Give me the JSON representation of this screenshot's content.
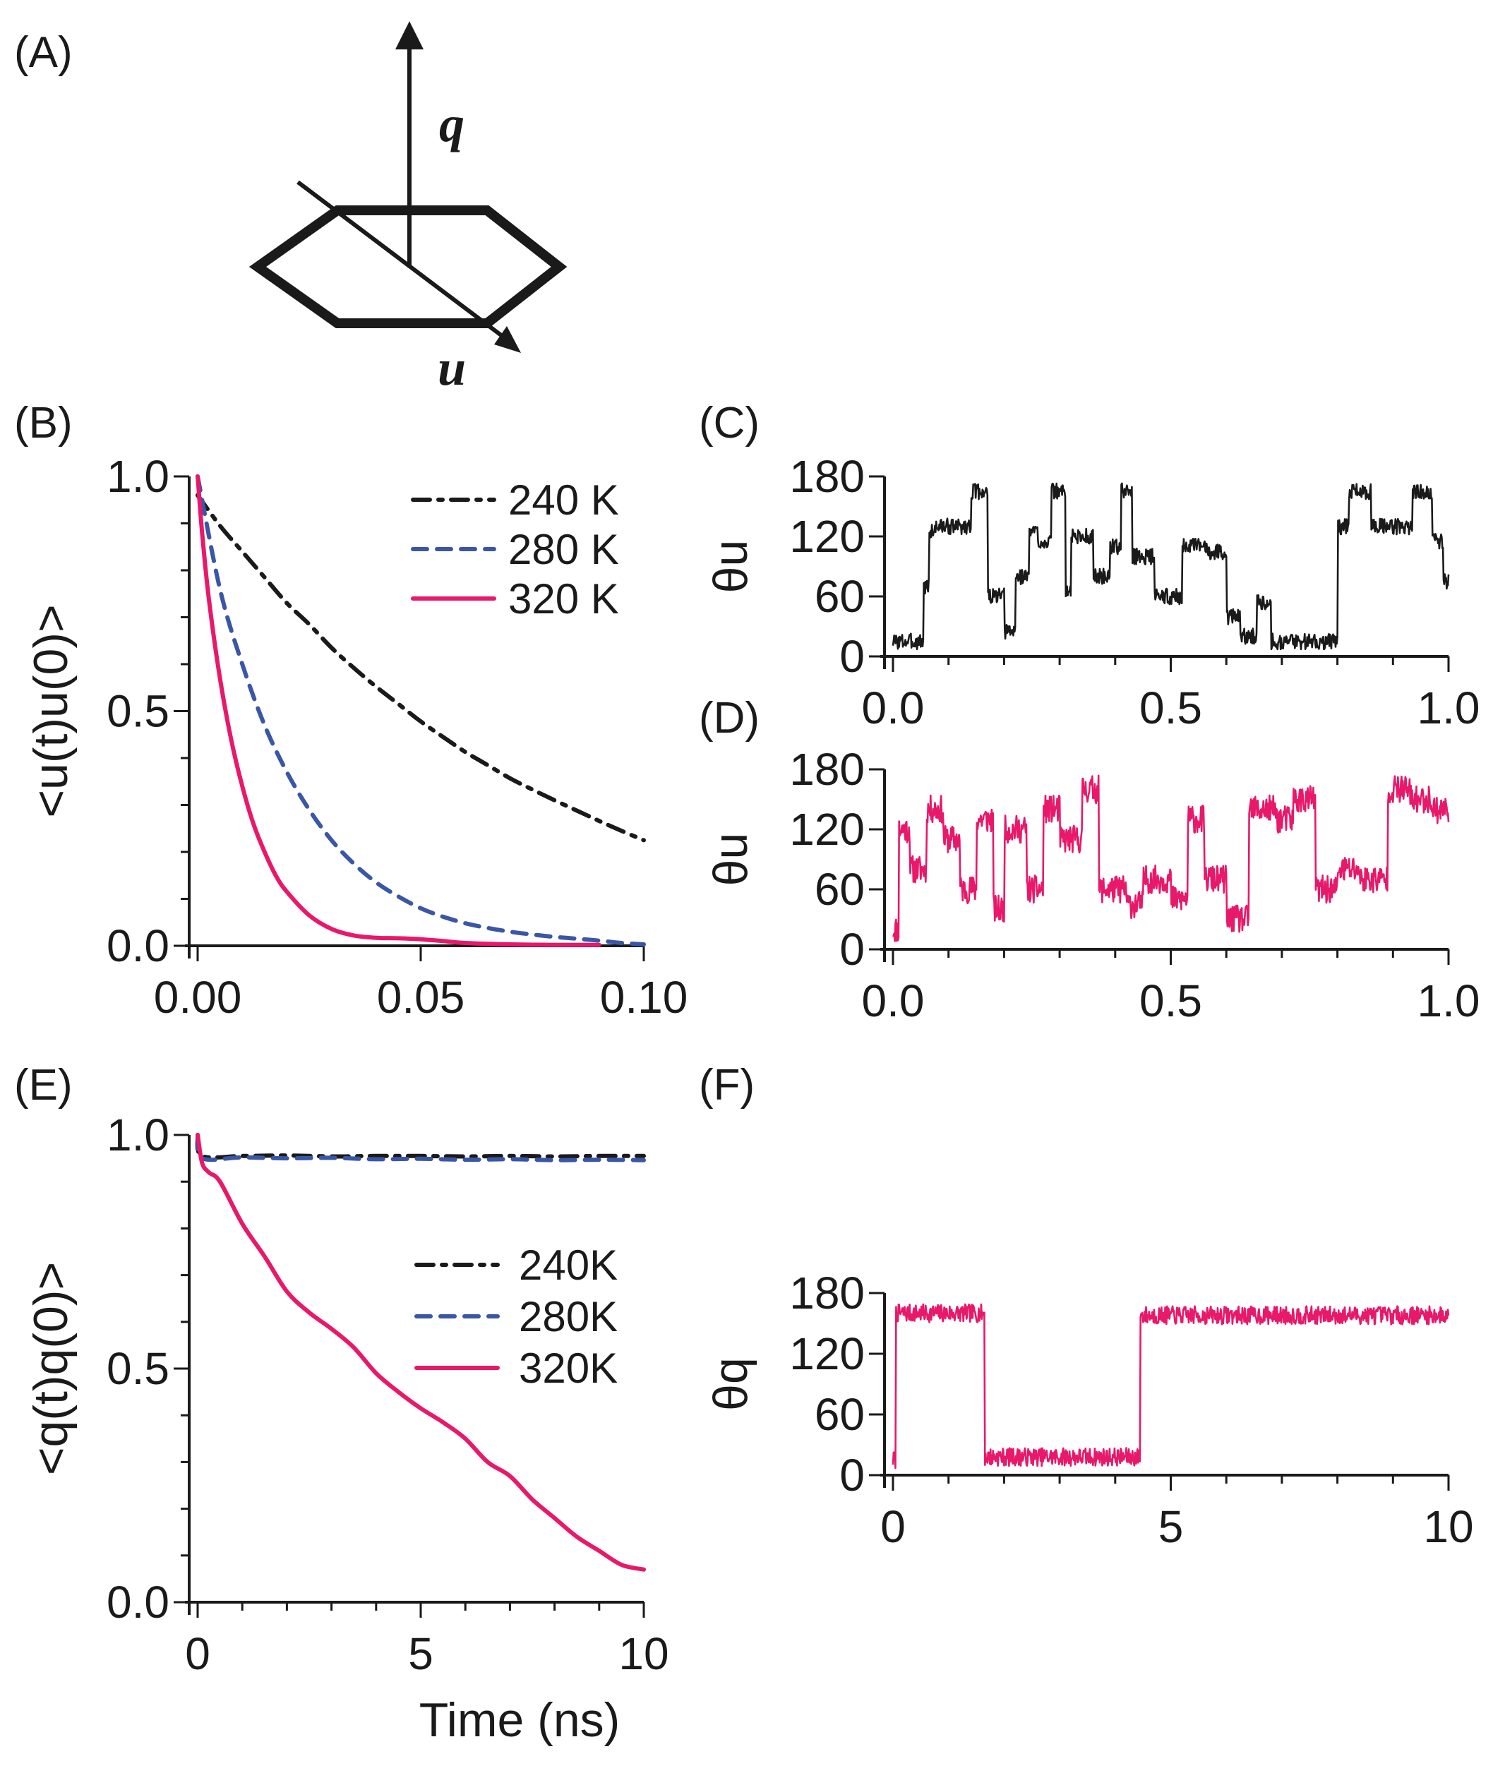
{
  "colors": {
    "black": "#1a1a1a",
    "blue": "#3a56a6",
    "pink": "#e8186a"
  },
  "panel_a": {
    "label": "(A)",
    "q_label": "q",
    "u_label": "u"
  },
  "chart_data": [
    {
      "id": "B",
      "type": "line",
      "panel_label": "(B)",
      "ylabel": "<u(t)u(0)>",
      "xlabel": "",
      "xlim": [
        0,
        0.1
      ],
      "ylim": [
        0,
        1.0
      ],
      "xticks": [
        0,
        0.05,
        0.1
      ],
      "xtick_labels": [
        "0.00",
        "0.05",
        "0.10"
      ],
      "yticks": [
        0,
        0.5,
        1.0
      ],
      "ytick_labels": [
        "0.0",
        "0.5",
        "1.0"
      ],
      "legend": [
        "240 K",
        "280 K",
        "320 K"
      ],
      "series": [
        {
          "name": "240 K",
          "style": "dashdot",
          "color": "#1a1a1a",
          "x": [
            0,
            0.005,
            0.01,
            0.015,
            0.02,
            0.025,
            0.03,
            0.035,
            0.04,
            0.045,
            0.05,
            0.055,
            0.06,
            0.065,
            0.07,
            0.075,
            0.08,
            0.085,
            0.09,
            0.095,
            0.1
          ],
          "values": [
            0.96,
            0.895,
            0.84,
            0.785,
            0.73,
            0.685,
            0.635,
            0.592,
            0.552,
            0.515,
            0.478,
            0.445,
            0.413,
            0.385,
            0.357,
            0.333,
            0.31,
            0.288,
            0.266,
            0.245,
            0.225
          ]
        },
        {
          "name": "280 K",
          "style": "dashed",
          "color": "#3a56a6",
          "x": [
            0,
            0.005,
            0.01,
            0.015,
            0.02,
            0.025,
            0.03,
            0.035,
            0.04,
            0.045,
            0.05,
            0.055,
            0.06,
            0.065,
            0.07,
            0.075,
            0.08,
            0.085,
            0.09,
            0.095,
            0.1
          ],
          "values": [
            1.0,
            0.76,
            0.6,
            0.47,
            0.37,
            0.29,
            0.225,
            0.175,
            0.135,
            0.105,
            0.08,
            0.062,
            0.048,
            0.038,
            0.03,
            0.024,
            0.019,
            0.015,
            0.011,
            0.006,
            0.003
          ]
        },
        {
          "name": "320 K",
          "style": "solid",
          "color": "#e8186a",
          "x": [
            0,
            0.001,
            0.0025,
            0.005,
            0.0075,
            0.01,
            0.0125,
            0.015,
            0.0175,
            0.02,
            0.025,
            0.03,
            0.035,
            0.04,
            0.045,
            0.05,
            0.055,
            0.06,
            0.07,
            0.08,
            0.09
          ],
          "values": [
            1.0,
            0.88,
            0.74,
            0.57,
            0.44,
            0.34,
            0.26,
            0.2,
            0.15,
            0.115,
            0.065,
            0.036,
            0.022,
            0.017,
            0.016,
            0.014,
            0.01,
            0.006,
            0.003,
            0.002,
            0.002
          ]
        }
      ]
    },
    {
      "id": "C",
      "type": "line",
      "panel_label": "(C)",
      "ylabel": "θu",
      "xlim": [
        0,
        1.0
      ],
      "ylim": [
        0,
        180
      ],
      "xticks": [
        0,
        0.5,
        1.0
      ],
      "xtick_labels": [
        "0.0",
        "0.5",
        "1.0"
      ],
      "yticks": [
        0,
        60,
        120,
        180
      ],
      "ytick_labels": [
        "0",
        "60",
        "120",
        "180"
      ],
      "noise": 8,
      "seed": 3,
      "series": [
        {
          "name": "trajectory",
          "color": "#1a1a1a",
          "segments": [
            [
              0,
              0.055,
              15
            ],
            [
              0.055,
              0.065,
              70
            ],
            [
              0.065,
              0.075,
              125
            ],
            [
              0.075,
              0.14,
              130
            ],
            [
              0.14,
              0.17,
              165
            ],
            [
              0.17,
              0.2,
              60
            ],
            [
              0.2,
              0.22,
              25
            ],
            [
              0.22,
              0.245,
              80
            ],
            [
              0.245,
              0.26,
              125
            ],
            [
              0.26,
              0.285,
              115
            ],
            [
              0.285,
              0.31,
              165
            ],
            [
              0.31,
              0.32,
              65
            ],
            [
              0.32,
              0.36,
              120
            ],
            [
              0.36,
              0.39,
              80
            ],
            [
              0.39,
              0.41,
              110
            ],
            [
              0.41,
              0.43,
              165
            ],
            [
              0.43,
              0.47,
              100
            ],
            [
              0.47,
              0.52,
              60
            ],
            [
              0.52,
              0.565,
              110
            ],
            [
              0.565,
              0.6,
              105
            ],
            [
              0.6,
              0.625,
              40
            ],
            [
              0.625,
              0.655,
              20
            ],
            [
              0.655,
              0.68,
              55
            ],
            [
              0.68,
              0.8,
              15
            ],
            [
              0.8,
              0.82,
              130
            ],
            [
              0.82,
              0.86,
              165
            ],
            [
              0.86,
              0.935,
              130
            ],
            [
              0.935,
              0.97,
              165
            ],
            [
              0.97,
              0.99,
              115
            ],
            [
              0.99,
              1.0,
              75
            ]
          ]
        }
      ]
    },
    {
      "id": "D",
      "type": "line",
      "panel_label": "(D)",
      "ylabel": "θu",
      "xlim": [
        0,
        1.0
      ],
      "ylim": [
        0,
        180
      ],
      "xticks": [
        0,
        0.5,
        1.0
      ],
      "xtick_labels": [
        "0.0",
        "0.5",
        "1.0"
      ],
      "yticks": [
        0,
        60,
        120,
        180
      ],
      "ytick_labels": [
        "0",
        "60",
        "120",
        "180"
      ],
      "noise": 14,
      "seed": 11,
      "series": [
        {
          "name": "trajectory",
          "color": "#e8186a",
          "segments": [
            [
              0,
              0.01,
              20
            ],
            [
              0.01,
              0.03,
              120
            ],
            [
              0.03,
              0.06,
              80
            ],
            [
              0.06,
              0.09,
              140
            ],
            [
              0.09,
              0.12,
              110
            ],
            [
              0.12,
              0.15,
              60
            ],
            [
              0.15,
              0.18,
              130
            ],
            [
              0.18,
              0.2,
              40
            ],
            [
              0.2,
              0.24,
              120
            ],
            [
              0.24,
              0.27,
              60
            ],
            [
              0.27,
              0.3,
              140
            ],
            [
              0.3,
              0.34,
              110
            ],
            [
              0.34,
              0.37,
              160
            ],
            [
              0.37,
              0.42,
              60
            ],
            [
              0.42,
              0.45,
              45
            ],
            [
              0.45,
              0.5,
              70
            ],
            [
              0.5,
              0.53,
              50
            ],
            [
              0.53,
              0.56,
              130
            ],
            [
              0.56,
              0.6,
              70
            ],
            [
              0.6,
              0.64,
              30
            ],
            [
              0.64,
              0.69,
              140
            ],
            [
              0.69,
              0.72,
              130
            ],
            [
              0.72,
              0.76,
              150
            ],
            [
              0.76,
              0.8,
              60
            ],
            [
              0.8,
              0.84,
              80
            ],
            [
              0.84,
              0.89,
              70
            ],
            [
              0.89,
              0.93,
              160
            ],
            [
              0.93,
              0.97,
              150
            ],
            [
              0.97,
              1.0,
              140
            ]
          ]
        }
      ]
    },
    {
      "id": "E",
      "type": "line",
      "panel_label": "(E)",
      "ylabel": "<q(t)q(0)>",
      "xlabel": "Time (ns)",
      "xlim": [
        0,
        10
      ],
      "ylim": [
        0,
        1.0
      ],
      "xticks": [
        0,
        5,
        10
      ],
      "xtick_labels": [
        "0",
        "5",
        "10"
      ],
      "yticks": [
        0,
        0.5,
        1.0
      ],
      "ytick_labels": [
        "0.0",
        "0.5",
        "1.0"
      ],
      "legend": [
        "240K",
        "280K",
        "320K"
      ],
      "series": [
        {
          "name": "240K",
          "style": "dashdot",
          "color": "#1a1a1a",
          "x": [
            0,
            0.1,
            1,
            2,
            3,
            4,
            5,
            6,
            7,
            8,
            9,
            10
          ],
          "values": [
            1.0,
            0.955,
            0.955,
            0.956,
            0.954,
            0.955,
            0.955,
            0.954,
            0.955,
            0.954,
            0.955,
            0.955
          ]
        },
        {
          "name": "280K",
          "style": "dashed",
          "color": "#3a56a6",
          "x": [
            0,
            0.1,
            1,
            2,
            3,
            4,
            5,
            6,
            7,
            8,
            9,
            10
          ],
          "values": [
            1.0,
            0.95,
            0.952,
            0.95,
            0.951,
            0.948,
            0.949,
            0.947,
            0.948,
            0.946,
            0.947,
            0.946
          ]
        },
        {
          "name": "320K",
          "style": "solid",
          "color": "#e8186a",
          "x": [
            0,
            0.1,
            0.25,
            0.5,
            1,
            1.5,
            2,
            2.5,
            3,
            3.5,
            4,
            4.5,
            5,
            5.5,
            6,
            6.5,
            7,
            7.5,
            8,
            8.5,
            9,
            9.5,
            10
          ],
          "values": [
            1.0,
            0.94,
            0.92,
            0.9,
            0.81,
            0.74,
            0.665,
            0.62,
            0.585,
            0.545,
            0.49,
            0.45,
            0.415,
            0.385,
            0.35,
            0.3,
            0.27,
            0.22,
            0.18,
            0.14,
            0.11,
            0.08,
            0.07
          ]
        }
      ]
    },
    {
      "id": "F",
      "type": "line",
      "panel_label": "(F)",
      "ylabel": "θq",
      "xlim": [
        0,
        10
      ],
      "ylim": [
        0,
        180
      ],
      "xticks": [
        0,
        5,
        10
      ],
      "xtick_labels": [
        "0",
        "5",
        "10"
      ],
      "yticks": [
        0,
        60,
        120,
        180
      ],
      "ytick_labels": [
        "0",
        "60",
        "120",
        "180"
      ],
      "noise": 9,
      "seed": 7,
      "series": [
        {
          "name": "trajectory",
          "color": "#e8186a",
          "segments": [
            [
              0,
              0.05,
              15
            ],
            [
              0.05,
              1.65,
              160
            ],
            [
              1.65,
              4.45,
              18
            ],
            [
              4.45,
              10,
              158
            ]
          ]
        }
      ]
    }
  ]
}
